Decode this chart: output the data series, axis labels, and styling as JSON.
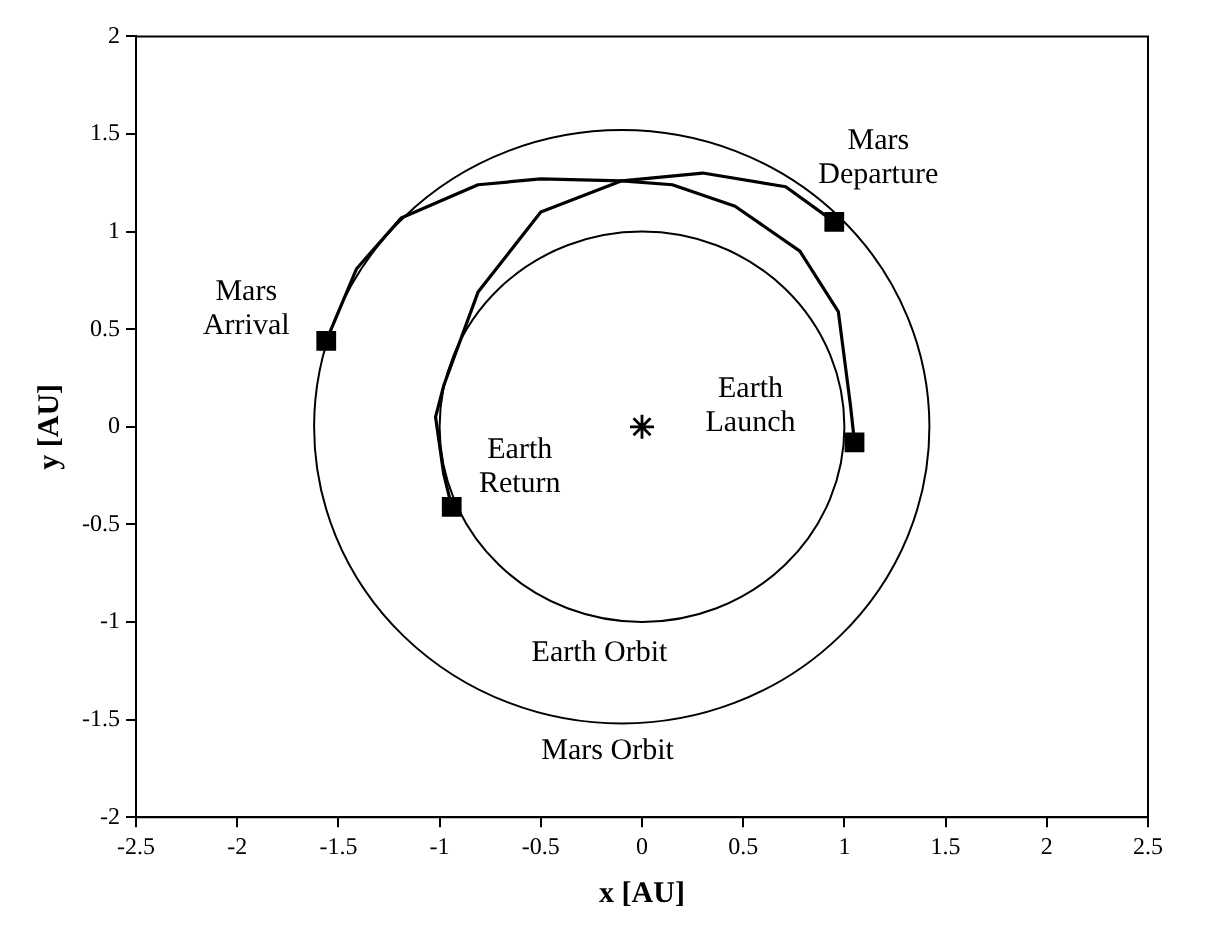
{
  "chart_data": {
    "type": "line",
    "xlabel": "x [AU]",
    "ylabel": "y [AU]",
    "xlim": [
      -2.5,
      2.5
    ],
    "ylim": [
      -2,
      2
    ],
    "xticks": [
      -2.5,
      -2,
      -1.5,
      -1,
      -0.5,
      0,
      0.5,
      1,
      1.5,
      2,
      2.5
    ],
    "yticks": [
      -2,
      -1.5,
      -1,
      -0.5,
      0,
      0.5,
      1,
      1.5,
      2
    ],
    "grid": false,
    "legend": false,
    "marker": "none",
    "series": [
      {
        "color": "#000000",
        "x": [
          1.05,
          1.03,
          0.97,
          0.78,
          0.46,
          0.15,
          -0.1,
          -0.5,
          -0.81,
          -1.19,
          -1.41,
          -1.56
        ],
        "values": [
          -0.08,
          0.11,
          0.59,
          0.9,
          1.13,
          1.24,
          1.26,
          1.27,
          1.24,
          1.07,
          0.81,
          0.44
        ]
      },
      {
        "color": "#000000",
        "x": [
          0.95,
          0.71,
          0.3,
          -0.1,
          -0.5,
          -0.81,
          -0.98,
          -1.02,
          -0.98,
          -0.94
        ],
        "values": [
          1.05,
          1.23,
          1.3,
          1.26,
          1.1,
          0.69,
          0.21,
          0.05,
          -0.24,
          -0.41
        ]
      },
      {
        "type": "scatter",
        "marker": "cross",
        "color": "#000000",
        "x": [
          0
        ],
        "values": [
          0
        ]
      },
      {
        "type": "scatter",
        "marker": "square",
        "color": "#000000",
        "x": [
          1.05,
          -1.56,
          0.95,
          -0.94
        ],
        "values": [
          -0.08,
          0.44,
          1.05,
          -0.41
        ]
      }
    ],
    "annotations": [
      {
        "text": "Mars\nDeparture",
        "x": 0.95,
        "y": 1.05
      },
      {
        "text": "Mars\nArrival",
        "x": -1.56,
        "y": 0.44
      },
      {
        "text": "Earth\nLaunch",
        "x": 1.05,
        "y": -0.08
      },
      {
        "text": "Earth\nReturn",
        "x": -0.94,
        "y": -0.41
      },
      "Earth Orbit",
      "Mars Orbit"
    ]
  }
}
